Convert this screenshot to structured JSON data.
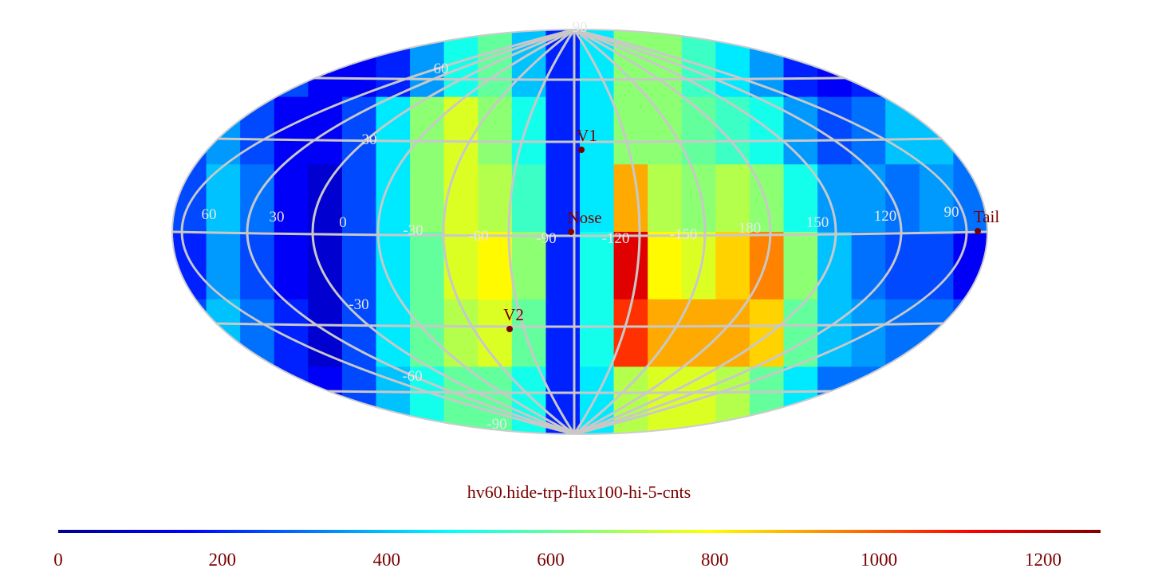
{
  "title": "hv60.hide-trp-flux100-hi-5-cnts",
  "chart_data": {
    "type": "heatmap",
    "projection": "mollweide",
    "title": "hv60.hide-trp-flux100-hi-5-cnts",
    "colormap": "jet",
    "colorbar": {
      "min": 0,
      "max": 1270,
      "ticks": [
        0,
        200,
        400,
        600,
        800,
        1000,
        1200
      ]
    },
    "meridian_labels": [
      {
        "text": "60"
      },
      {
        "text": "30"
      },
      {
        "text": "0"
      },
      {
        "text": "-30"
      },
      {
        "text": "-60"
      },
      {
        "text": "-90"
      },
      {
        "text": "-120"
      },
      {
        "text": "-150"
      },
      {
        "text": "180"
      },
      {
        "text": "150"
      },
      {
        "text": "120"
      },
      {
        "text": "90"
      }
    ],
    "parallel_labels": [
      {
        "text": "90"
      },
      {
        "text": "60"
      },
      {
        "text": "30"
      },
      {
        "text": "-30"
      },
      {
        "text": "-60"
      },
      {
        "text": "-90"
      }
    ],
    "markers": [
      {
        "label": "V1"
      },
      {
        "label": "Nose"
      },
      {
        "label": "V2"
      },
      {
        "label": "Tail"
      }
    ],
    "map_values_approx": [
      [
        100,
        150,
        250,
        250,
        150,
        150,
        200,
        350,
        500,
        600,
        400,
        200,
        450,
        650,
        650,
        550,
        450,
        350,
        200,
        150,
        200,
        250,
        250,
        200
      ],
      [
        250,
        350,
        250,
        150,
        150,
        250,
        450,
        650,
        750,
        650,
        500,
        200,
        450,
        650,
        650,
        600,
        550,
        500,
        350,
        250,
        300,
        400,
        400,
        300
      ],
      [
        250,
        400,
        300,
        150,
        100,
        250,
        450,
        650,
        750,
        700,
        550,
        200,
        450,
        900,
        700,
        650,
        700,
        650,
        500,
        350,
        350,
        300,
        350,
        300
      ],
      [
        200,
        350,
        250,
        150,
        100,
        250,
        450,
        600,
        750,
        800,
        650,
        200,
        500,
        1150,
        800,
        750,
        850,
        950,
        650,
        400,
        300,
        250,
        250,
        150
      ],
      [
        250,
        400,
        300,
        200,
        100,
        250,
        450,
        600,
        700,
        750,
        600,
        200,
        500,
        1050,
        900,
        900,
        900,
        850,
        600,
        400,
        350,
        300,
        300,
        250
      ],
      [
        300,
        400,
        300,
        200,
        150,
        250,
        400,
        500,
        600,
        600,
        500,
        200,
        450,
        700,
        750,
        750,
        700,
        600,
        450,
        300,
        300,
        350,
        350,
        300
      ]
    ]
  }
}
